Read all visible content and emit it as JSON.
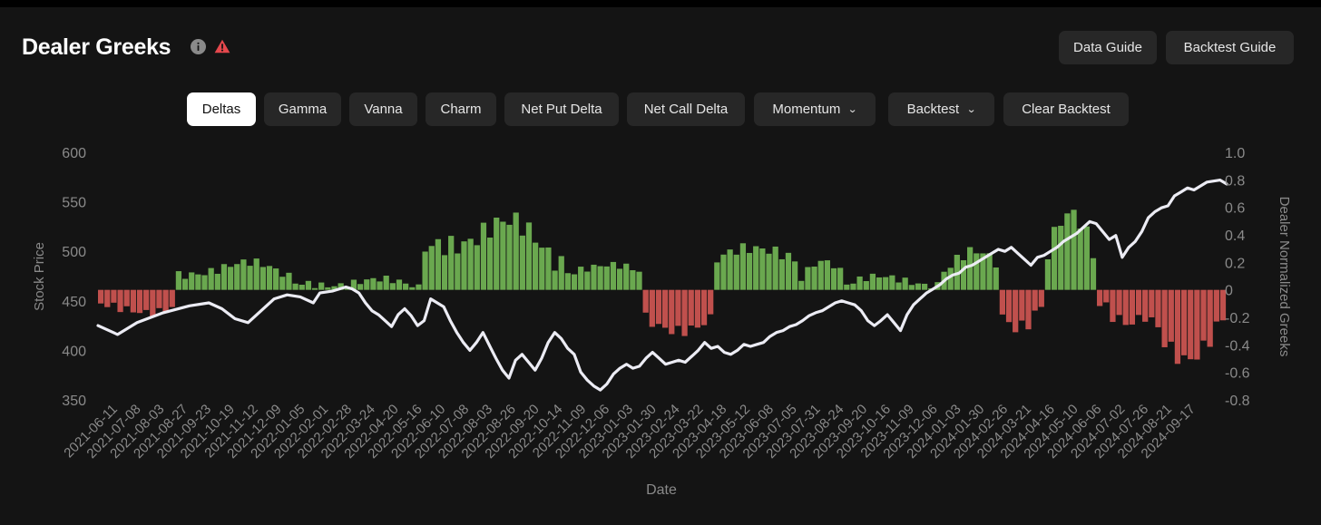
{
  "header": {
    "title": "Dealer Greeks",
    "data_guide": "Data Guide",
    "backtest_guide": "Backtest Guide"
  },
  "tabs": [
    {
      "label": "Deltas",
      "active": true
    },
    {
      "label": "Gamma"
    },
    {
      "label": "Vanna"
    },
    {
      "label": "Charm"
    },
    {
      "label": "Net Put Delta"
    },
    {
      "label": "Net Call Delta"
    },
    {
      "label": "Momentum",
      "dropdown": true
    },
    {
      "label": "Backtest",
      "dropdown": true
    },
    {
      "label": "Clear Backtest"
    }
  ],
  "icons": {
    "info": "info-icon",
    "warning": "warning-icon",
    "dropdown": "chevron-down-icon"
  },
  "colors": {
    "background": "#141414",
    "active_tab": "#ffffff",
    "positive_bar": "#6aa84f",
    "negative_bar": "#c0504d",
    "price_line": "#ececf4",
    "warning": "#e5484d"
  },
  "chart_data": {
    "type": "bar+line",
    "xlabel": "Date",
    "ylabel_left": "Stock Price",
    "ylabel_right": "Dealer Normalized Greeks",
    "ylim_left": [
      350,
      600
    ],
    "ylim_right": [
      -0.8,
      1.0
    ],
    "yticks_left": [
      "600",
      "550",
      "500",
      "450",
      "400",
      "350"
    ],
    "yticks_right": [
      "1.0",
      "0.8",
      "0.6",
      "0.4",
      "0.2",
      "0",
      "-0.2",
      "-0.4",
      "-0.6",
      "-0.8"
    ],
    "x_ticks": [
      "2021-06-11",
      "2021-07-08",
      "2021-08-03",
      "2021-08-27",
      "2021-09-23",
      "2021-10-19",
      "2021-11-12",
      "2021-12-09",
      "2022-01-05",
      "2022-02-01",
      "2022-02-28",
      "2022-03-24",
      "2022-04-20",
      "2022-05-16",
      "2022-06-10",
      "2022-07-08",
      "2022-08-03",
      "2022-08-26",
      "2022-09-20",
      "2022-10-14",
      "2022-11-09",
      "2022-12-06",
      "2023-01-03",
      "2023-01-30",
      "2023-02-24",
      "2023-03-22",
      "2023-04-18",
      "2023-05-12",
      "2023-06-08",
      "2023-07-05",
      "2023-07-31",
      "2023-08-24",
      "2023-09-20",
      "2023-10-16",
      "2023-11-09",
      "2023-12-06",
      "2024-01-03",
      "2024-01-30",
      "2024-02-26",
      "2024-03-21",
      "2024-04-16",
      "2024-05-10",
      "2024-06-06",
      "2024-07-02",
      "2024-07-26",
      "2024-08-21",
      "2024-09-17"
    ],
    "series": [
      {
        "name": "Stock Price",
        "type": "line",
        "axis": "left",
        "points": [
          [
            0,
            425
          ],
          [
            3,
            416
          ],
          [
            6,
            428
          ],
          [
            10,
            438
          ],
          [
            14,
            445
          ],
          [
            17,
            448
          ],
          [
            19,
            442
          ],
          [
            21,
            432
          ],
          [
            23,
            428
          ],
          [
            25,
            440
          ],
          [
            27,
            452
          ],
          [
            29,
            456
          ],
          [
            31,
            454
          ],
          [
            33,
            448
          ],
          [
            34,
            458
          ],
          [
            36,
            460
          ],
          [
            38,
            464
          ],
          [
            39,
            462
          ],
          [
            40,
            458
          ],
          [
            41,
            448
          ],
          [
            42,
            440
          ],
          [
            43,
            436
          ],
          [
            44,
            430
          ],
          [
            45,
            424
          ],
          [
            46,
            436
          ],
          [
            47,
            442
          ],
          [
            48,
            435
          ],
          [
            49,
            425
          ],
          [
            50,
            430
          ],
          [
            51,
            452
          ],
          [
            53,
            444
          ],
          [
            54,
            430
          ],
          [
            55,
            418
          ],
          [
            56,
            408
          ],
          [
            57,
            400
          ],
          [
            58,
            408
          ],
          [
            59,
            418
          ],
          [
            60,
            405
          ],
          [
            61,
            392
          ],
          [
            62,
            380
          ],
          [
            63,
            372
          ],
          [
            64,
            390
          ],
          [
            65,
            396
          ],
          [
            66,
            388
          ],
          [
            67,
            380
          ],
          [
            68,
            392
          ],
          [
            69,
            408
          ],
          [
            70,
            418
          ],
          [
            71,
            412
          ],
          [
            72,
            402
          ],
          [
            73,
            396
          ],
          [
            74,
            378
          ],
          [
            75,
            370
          ],
          [
            76,
            364
          ],
          [
            77,
            360
          ],
          [
            78,
            366
          ],
          [
            79,
            376
          ],
          [
            80,
            382
          ],
          [
            81,
            386
          ],
          [
            82,
            382
          ],
          [
            83,
            384
          ],
          [
            84,
            392
          ],
          [
            85,
            398
          ],
          [
            86,
            392
          ],
          [
            87,
            386
          ],
          [
            88,
            388
          ],
          [
            89,
            390
          ],
          [
            90,
            388
          ],
          [
            91,
            394
          ],
          [
            92,
            400
          ],
          [
            93,
            408
          ],
          [
            94,
            402
          ],
          [
            95,
            404
          ],
          [
            96,
            398
          ],
          [
            97,
            396
          ],
          [
            98,
            400
          ],
          [
            99,
            406
          ],
          [
            100,
            404
          ],
          [
            101,
            406
          ],
          [
            102,
            408
          ],
          [
            103,
            414
          ],
          [
            104,
            418
          ],
          [
            105,
            420
          ],
          [
            106,
            424
          ],
          [
            107,
            426
          ],
          [
            108,
            430
          ],
          [
            109,
            435
          ],
          [
            110,
            438
          ],
          [
            111,
            440
          ],
          [
            112,
            444
          ],
          [
            113,
            448
          ],
          [
            114,
            450
          ],
          [
            115,
            448
          ],
          [
            116,
            446
          ],
          [
            117,
            440
          ],
          [
            118,
            430
          ],
          [
            119,
            425
          ],
          [
            120,
            430
          ],
          [
            121,
            436
          ],
          [
            122,
            428
          ],
          [
            123,
            420
          ],
          [
            124,
            436
          ],
          [
            125,
            446
          ],
          [
            126,
            452
          ],
          [
            127,
            458
          ],
          [
            128,
            462
          ],
          [
            129,
            466
          ],
          [
            130,
            472
          ],
          [
            131,
            476
          ],
          [
            132,
            478
          ],
          [
            133,
            484
          ],
          [
            134,
            486
          ],
          [
            135,
            490
          ],
          [
            136,
            494
          ],
          [
            137,
            498
          ],
          [
            138,
            502
          ],
          [
            139,
            500
          ],
          [
            140,
            504
          ],
          [
            141,
            498
          ],
          [
            142,
            492
          ],
          [
            143,
            486
          ],
          [
            144,
            494
          ],
          [
            145,
            496
          ],
          [
            146,
            500
          ],
          [
            147,
            504
          ],
          [
            148,
            510
          ],
          [
            149,
            514
          ],
          [
            150,
            518
          ],
          [
            151,
            524
          ],
          [
            152,
            530
          ],
          [
            153,
            528
          ],
          [
            154,
            520
          ],
          [
            155,
            512
          ],
          [
            156,
            516
          ],
          [
            157,
            494
          ],
          [
            158,
            504
          ],
          [
            159,
            510
          ],
          [
            160,
            520
          ],
          [
            161,
            534
          ],
          [
            162,
            540
          ],
          [
            163,
            544
          ],
          [
            164,
            546
          ],
          [
            165,
            556
          ],
          [
            166,
            560
          ],
          [
            167,
            564
          ],
          [
            168,
            562
          ],
          [
            169,
            566
          ],
          [
            170,
            570
          ],
          [
            172,
            572
          ],
          [
            173,
            568
          ]
        ]
      },
      {
        "name": "Dealer Normalized Deltas",
        "type": "bar",
        "axis": "right",
        "samples": 174,
        "segments": [
          {
            "from": 0,
            "to": 12,
            "mean": -0.18,
            "amp": 0.06
          },
          {
            "from": 12,
            "to": 31,
            "mean": 0.18,
            "amp": 0.06
          },
          {
            "from": 31,
            "to": 50,
            "mean": 0.06,
            "amp": 0.05
          },
          {
            "from": 50,
            "to": 72,
            "mean": 0.45,
            "amp": 0.15
          },
          {
            "from": 72,
            "to": 84,
            "mean": 0.2,
            "amp": 0.05
          },
          {
            "from": 84,
            "to": 95,
            "mean": -0.34,
            "amp": 0.08
          },
          {
            "from": 95,
            "to": 108,
            "mean": 0.34,
            "amp": 0.08
          },
          {
            "from": 108,
            "to": 115,
            "mean": 0.2,
            "amp": 0.05
          },
          {
            "from": 115,
            "to": 130,
            "mean": 0.08,
            "amp": 0.05
          },
          {
            "from": 130,
            "to": 139,
            "mean": 0.3,
            "amp": 0.08
          },
          {
            "from": 139,
            "to": 146,
            "mean": -0.3,
            "amp": 0.1
          },
          {
            "from": 146,
            "to": 154,
            "mean": 0.5,
            "amp": 0.12
          },
          {
            "from": 154,
            "to": 162,
            "mean": -0.25,
            "amp": 0.1
          },
          {
            "from": 162,
            "to": 174,
            "mean": -0.45,
            "amp": 0.12
          }
        ]
      }
    ]
  }
}
